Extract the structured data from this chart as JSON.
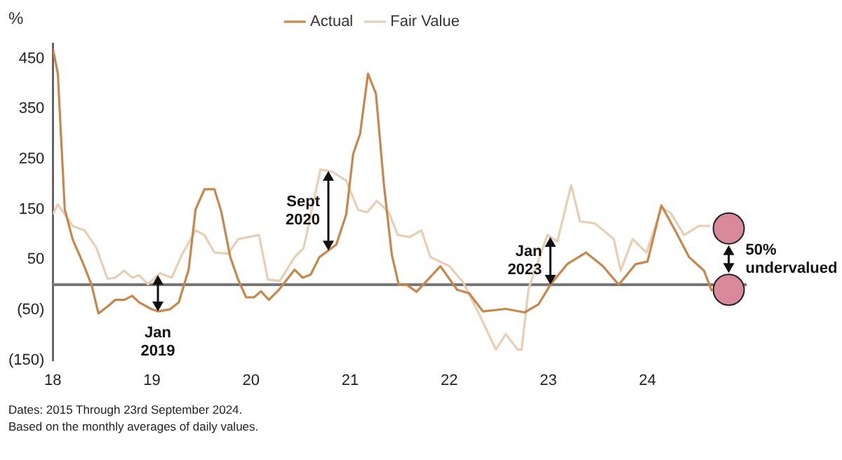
{
  "chart_data": {
    "type": "line",
    "ylabel": "%",
    "legend": "top",
    "marker": "none",
    "grid": false,
    "xlim": [
      18,
      25
    ],
    "xticks": [
      {
        "value": 18,
        "label": "18"
      },
      {
        "value": 19,
        "label": "19"
      },
      {
        "value": 20,
        "label": "20"
      },
      {
        "value": 21,
        "label": "21"
      },
      {
        "value": 22,
        "label": "22"
      },
      {
        "value": 23,
        "label": "23"
      },
      {
        "value": 24,
        "label": "24"
      }
    ],
    "ylim": [
      -150,
      480
    ],
    "yticks": [
      {
        "value": -150,
        "label": "(150)"
      },
      {
        "value": -50,
        "label": "(50)"
      },
      50,
      150,
      250,
      350,
      450
    ],
    "ref_lines": [
      {
        "axis": "y",
        "value": 0,
        "color": "#777777"
      }
    ],
    "series": [
      {
        "name": "Actual",
        "color": "#c8864a",
        "x": [
          18.0,
          18.05,
          18.12,
          18.2,
          18.3,
          18.39,
          18.46,
          18.56,
          18.63,
          18.72,
          18.8,
          18.87,
          18.99,
          19.06,
          19.18,
          19.27,
          19.37,
          19.44,
          19.53,
          19.63,
          19.7,
          19.79,
          19.87,
          19.95,
          20.03,
          20.1,
          20.18,
          20.29,
          20.44,
          20.52,
          20.6,
          20.69,
          20.78,
          20.86,
          20.96,
          21.03,
          21.1,
          21.18,
          21.26,
          21.34,
          21.42,
          21.49,
          21.57,
          21.67,
          21.91,
          22.08,
          22.2,
          22.34,
          22.57,
          22.76,
          22.9,
          23.02,
          23.19,
          23.38,
          23.55,
          23.71,
          23.88,
          24.0,
          24.14,
          24.28,
          24.42,
          24.57,
          24.65
        ],
        "values": [
          470,
          420,
          150,
          90,
          45,
          0,
          -57,
          -42,
          -30,
          -30,
          -22,
          -35,
          -48,
          -53,
          -49,
          -35,
          30,
          150,
          190,
          190,
          145,
          55,
          10,
          -25,
          -25,
          -13,
          -30,
          -8,
          30,
          14,
          20,
          55,
          68,
          80,
          140,
          260,
          300,
          420,
          380,
          200,
          60,
          0,
          0,
          -14,
          37,
          -10,
          -17,
          -53,
          -48,
          -55,
          -39,
          0,
          41,
          64,
          37,
          0,
          41,
          46,
          158,
          108,
          55,
          28,
          -13
        ]
      },
      {
        "name": "Fair Value",
        "color": "#e8cfb4",
        "x": [
          18.0,
          18.05,
          18.2,
          18.32,
          18.44,
          18.55,
          18.63,
          18.72,
          18.8,
          18.87,
          18.96,
          19.08,
          19.2,
          19.3,
          19.44,
          19.53,
          19.63,
          19.77,
          19.87,
          20.08,
          20.17,
          20.29,
          20.44,
          20.53,
          20.7,
          20.82,
          20.96,
          21.08,
          21.17,
          21.27,
          21.39,
          21.48,
          21.6,
          21.72,
          21.81,
          22.0,
          22.14,
          22.31,
          22.47,
          22.57,
          22.69,
          22.73,
          22.8,
          22.99,
          23.09,
          23.23,
          23.32,
          23.47,
          23.66,
          23.73,
          23.85,
          23.99,
          24.14,
          24.23,
          24.37,
          24.52,
          24.63
        ],
        "values": [
          140,
          160,
          117,
          108,
          73,
          12,
          14,
          28,
          14,
          19,
          1,
          23,
          14,
          59,
          108,
          99,
          64,
          62,
          91,
          99,
          10,
          8,
          55,
          73,
          229,
          225,
          207,
          149,
          144,
          167,
          144,
          99,
          95,
          108,
          55,
          37,
          5,
          -62,
          -129,
          -98,
          -129,
          -129,
          -8,
          99,
          86,
          198,
          126,
          122,
          91,
          28,
          91,
          64,
          153,
          144,
          99,
          117,
          117
        ]
      },
      {
        "type": "scatter",
        "color": "#d98a9a",
        "marker": "circle",
        "x": [
          24.82,
          24.82
        ],
        "values": [
          -10,
          112
        ]
      }
    ],
    "annotations": [
      {
        "text": "Jan\n2019",
        "x": 19.06,
        "y": -53
      },
      {
        "text": "Sept\n2020",
        "x": 20.78,
        "y": 68
      },
      {
        "text": "Jan\n2023",
        "x": 23.02,
        "y": 0
      },
      {
        "text": "50%\nundervalued",
        "x": 24.82,
        "y": -10
      },
      "Dates: 2015 Through 23rd September 2024.",
      "Based on the monthly averages of daily values."
    ]
  }
}
